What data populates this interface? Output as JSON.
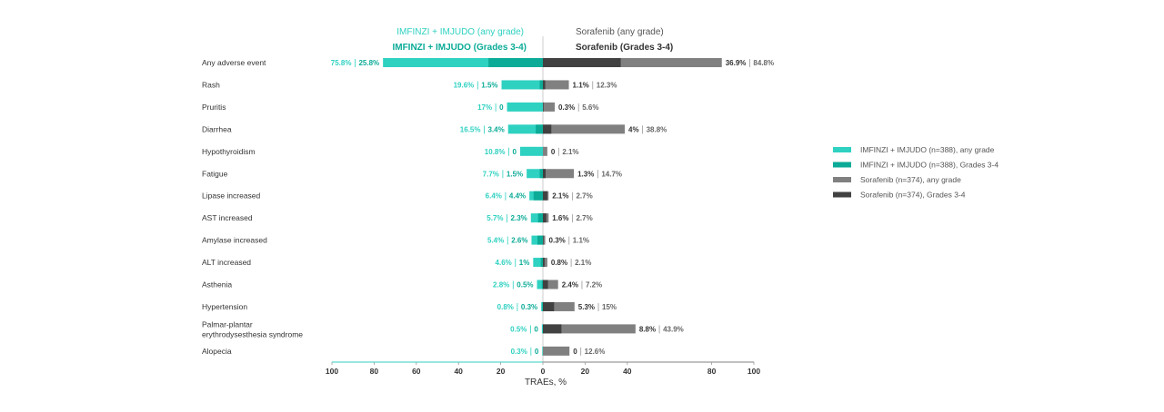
{
  "chart_data": {
    "type": "bar",
    "title": "",
    "xlabel": "TRAEs, %",
    "xlim": [
      -100,
      100
    ],
    "x_ticks": [
      "100",
      "80",
      "60",
      "40",
      "20",
      "0",
      "20",
      "40",
      "80",
      "100"
    ],
    "x_tick_values": [
      -100,
      -80,
      -60,
      -40,
      -20,
      0,
      20,
      40,
      80,
      100
    ],
    "headers": {
      "left_any": "IMFINZI + IMJUDO (any grade)",
      "left_severe": "IMFINZI + IMJUDO (Grades 3-4)",
      "right_any": "Sorafenib (any grade)",
      "right_severe": "Sorafenib (Grades 3-4)"
    },
    "categories": [
      [
        "Any adverse event"
      ],
      [
        "Rash"
      ],
      [
        "Pruritis"
      ],
      [
        "Diarrhea"
      ],
      [
        "Hypothyroidism"
      ],
      [
        "Fatigue"
      ],
      [
        "Lipase increased"
      ],
      [
        "AST increased"
      ],
      [
        "Amylase increased"
      ],
      [
        "ALT increased"
      ],
      [
        "Asthenia"
      ],
      [
        "Hypertension"
      ],
      [
        "Palmar-plantar",
        "erythrodysesthesia syndrome"
      ],
      [
        "Alopecia"
      ]
    ],
    "series": [
      {
        "name": "IMFINZI + IMJUDO (n=388), any grade",
        "color": "#2fd1c1",
        "values": [
          75.8,
          19.6,
          17,
          16.5,
          10.8,
          7.7,
          6.4,
          5.7,
          5.4,
          4.6,
          2.8,
          0.8,
          0.5,
          0.3
        ],
        "labels": [
          "75.8%",
          "19.6%",
          "17%",
          "16.5%",
          "10.8%",
          "7.7%",
          "6.4%",
          "5.7%",
          "5.4%",
          "4.6%",
          "2.8%",
          "0.8%",
          "0.5%",
          "0.3%"
        ]
      },
      {
        "name": "IMFINZI + IMJUDO (n=388), Grades 3-4",
        "color": "#0bab97",
        "values": [
          25.8,
          1.5,
          0,
          3.4,
          0,
          1.5,
          4.4,
          2.3,
          2.6,
          1,
          0.5,
          0.3,
          0,
          0
        ],
        "labels": [
          "25.8%",
          "1.5%",
          "0",
          "3.4%",
          "0",
          "1.5%",
          "4.4%",
          "2.3%",
          "2.6%",
          "1%",
          "0.5%",
          "0.3%",
          "0",
          "0"
        ]
      },
      {
        "name": "Sorafenib (n=374), any grade",
        "color": "#808080",
        "values": [
          84.8,
          12.3,
          5.6,
          38.8,
          2.1,
          14.7,
          2.7,
          2.7,
          1.1,
          2.1,
          7.2,
          15,
          43.9,
          12.6
        ],
        "labels": [
          "84.8%",
          "12.3%",
          "5.6%",
          "38.8%",
          "2.1%",
          "14.7%",
          "2.7%",
          "2.7%",
          "1.1%",
          "2.1%",
          "7.2%",
          "15%",
          "43.9%",
          "12.6%"
        ]
      },
      {
        "name": "Sorafenib (n=374), Grades 3-4",
        "color": "#414141",
        "values": [
          36.9,
          1.1,
          0.3,
          4,
          0,
          1.3,
          2.1,
          1.6,
          0.3,
          0.8,
          2.4,
          5.3,
          8.8,
          0
        ],
        "labels": [
          "36.9%",
          "1.1%",
          "0.3%",
          "4%",
          "0",
          "1.3%",
          "2.1%",
          "1.6%",
          "0.3%",
          "0.8%",
          "2.4%",
          "5.3%",
          "8.8%",
          "0"
        ]
      }
    ],
    "legend": {
      "position": "right",
      "items": [
        "IMFINZI + IMJUDO (n=388), any grade",
        "IMFINZI + IMJUDO (n=388), Grades 3-4",
        "Sorafenib (n=374), any grade",
        "Sorafenib (n=374), Grades 3-4"
      ]
    },
    "grid": false
  }
}
